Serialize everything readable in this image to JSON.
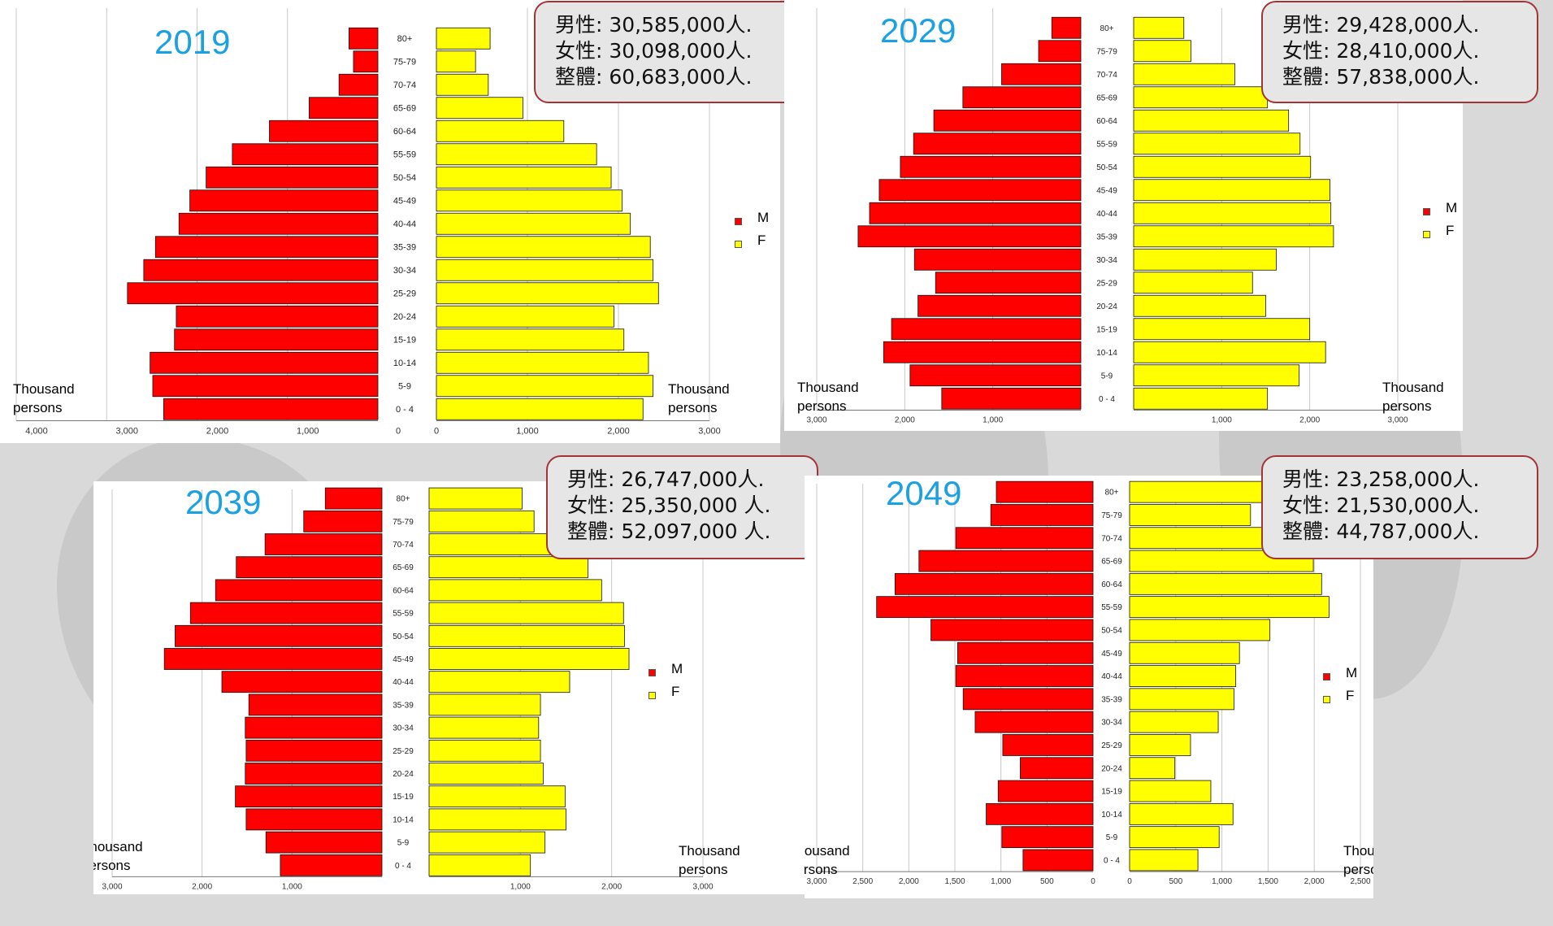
{
  "colors": {
    "male": "#ff0000",
    "female": "#ffff00",
    "year": "#1ba1e2",
    "callout_border": "#a33434"
  },
  "age_groups": [
    "80+",
    "75-79",
    "70-74",
    "65-69",
    "60-64",
    "55-59",
    "50-54",
    "45-49",
    "40-44",
    "35-39",
    "30-34",
    "25-29",
    "20-24",
    "15-19",
    "10-14",
    "5-9",
    "0 - 4"
  ],
  "chart_data": [
    {
      "type": "bar",
      "year": "2019",
      "xlabel_left": "Thousand persons",
      "xlabel_right": "Thousand persons",
      "legend": [
        "M",
        "F"
      ],
      "left_axis_max": 4000,
      "left_ticks": [
        "4,000",
        "3,000",
        "2,000",
        "1,000",
        "0"
      ],
      "right_axis_max": 3000,
      "right_ticks": [
        "0",
        "1,000",
        "2,000",
        "3,000"
      ],
      "categories": [
        "80+",
        "75-79",
        "70-74",
        "65-69",
        "60-64",
        "55-59",
        "50-54",
        "45-49",
        "40-44",
        "35-39",
        "30-34",
        "25-29",
        "20-24",
        "15-19",
        "10-14",
        "5-9",
        "0 - 4"
      ],
      "series": [
        {
          "name": "M",
          "values": [
            320,
            270,
            430,
            760,
            1200,
            1610,
            1900,
            2080,
            2200,
            2460,
            2590,
            2770,
            2230,
            2250,
            2520,
            2490,
            2370
          ]
        },
        {
          "name": "F",
          "values": [
            590,
            430,
            570,
            950,
            1400,
            1760,
            1920,
            2040,
            2130,
            2350,
            2380,
            2440,
            1950,
            2060,
            2330,
            2380,
            2270
          ]
        }
      ],
      "summary": {
        "male": "男性: 30,585,000人.",
        "female": "女性: 30,098,000人.",
        "total": "整體: 60,683,000人."
      }
    },
    {
      "type": "bar",
      "year": "2029",
      "xlabel_left": "Thousand persons",
      "xlabel_right": "Thousand persons",
      "legend": [
        "M",
        "F"
      ],
      "left_axis_max": 3000,
      "left_ticks": [
        "3,000",
        "2,000",
        "1,000"
      ],
      "right_axis_max": 3000,
      "right_ticks": [
        "1,000",
        "2,000",
        "3,000"
      ],
      "categories": [
        "80+",
        "75-79",
        "70-74",
        "65-69",
        "60-64",
        "55-59",
        "50-54",
        "45-49",
        "40-44",
        "35-39",
        "30-34",
        "25-29",
        "20-24",
        "15-19",
        "10-14",
        "5-9",
        "0 - 4"
      ],
      "series": [
        {
          "name": "M",
          "values": [
            330,
            480,
            900,
            1340,
            1670,
            1900,
            2050,
            2290,
            2400,
            2530,
            1890,
            1650,
            1850,
            2150,
            2240,
            1940,
            1580
          ]
        },
        {
          "name": "F",
          "values": [
            570,
            650,
            1150,
            1520,
            1760,
            1890,
            2010,
            2230,
            2240,
            2270,
            1620,
            1350,
            1500,
            2000,
            2180,
            1880,
            1520
          ]
        }
      ],
      "summary": {
        "male": "男性: 29,428,000人.",
        "female": "女性: 28,410,000人.",
        "total": "整體: 57,838,000人."
      }
    },
    {
      "type": "bar",
      "year": "2039",
      "xlabel_left": "Thousand persons",
      "xlabel_right": "Thousand persons",
      "legend": [
        "M",
        "F"
      ],
      "left_axis_max": 3000,
      "left_ticks": [
        "3,000",
        "2,000",
        "1,000"
      ],
      "right_axis_max": 3000,
      "right_ticks": [
        "1,000",
        "2,000",
        "3,000"
      ],
      "categories": [
        "80+",
        "75-79",
        "70-74",
        "65-69",
        "60-64",
        "55-59",
        "50-54",
        "45-49",
        "40-44",
        "35-39",
        "30-34",
        "25-29",
        "20-24",
        "15-19",
        "10-14",
        "5-9",
        "0 - 4"
      ],
      "series": [
        {
          "name": "M",
          "values": [
            630,
            870,
            1300,
            1620,
            1850,
            2130,
            2300,
            2420,
            1780,
            1480,
            1520,
            1510,
            1520,
            1630,
            1510,
            1290,
            1130
          ]
        },
        {
          "name": "F",
          "values": [
            1020,
            1150,
            1500,
            1740,
            1890,
            2130,
            2140,
            2190,
            1540,
            1220,
            1200,
            1220,
            1250,
            1490,
            1500,
            1270,
            1110
          ]
        }
      ],
      "summary": {
        "male": "男性: 26,747,000人.",
        "female": "女性: 25,350,000 人.",
        "total": "整體: 52,097,000 人."
      }
    },
    {
      "type": "bar",
      "year": "2049",
      "xlabel_left": "Thousand persons",
      "xlabel_right": "Thousand persons",
      "legend": [
        "M",
        "F"
      ],
      "left_axis_max": 3000,
      "left_ticks": [
        "3,000",
        "2,500",
        "2,000",
        "1,500",
        "1,000",
        "500",
        "0"
      ],
      "right_axis_max": 2500,
      "right_ticks": [
        "0",
        "500",
        "1,000",
        "1,500",
        "2,000",
        "2,500"
      ],
      "categories": [
        "80+",
        "75-79",
        "70-74",
        "65-69",
        "60-64",
        "55-59",
        "50-54",
        "45-49",
        "40-44",
        "35-39",
        "30-34",
        "25-29",
        "20-24",
        "15-19",
        "10-14",
        "5-9",
        "0 - 4"
      ],
      "series": [
        {
          "name": "M",
          "values": [
            1050,
            1110,
            1490,
            1890,
            2150,
            2350,
            1760,
            1470,
            1490,
            1410,
            1280,
            980,
            790,
            1030,
            1160,
            990,
            760
          ]
        },
        {
          "name": "F",
          "values": [
            1500,
            1310,
            1690,
            1990,
            2080,
            2160,
            1520,
            1190,
            1150,
            1130,
            960,
            660,
            490,
            880,
            1120,
            970,
            740
          ]
        }
      ],
      "summary": {
        "male": "男性: 23,258,000人.",
        "female": "女性: 21,530,000人.",
        "total": "整體: 44,787,000人."
      }
    }
  ]
}
